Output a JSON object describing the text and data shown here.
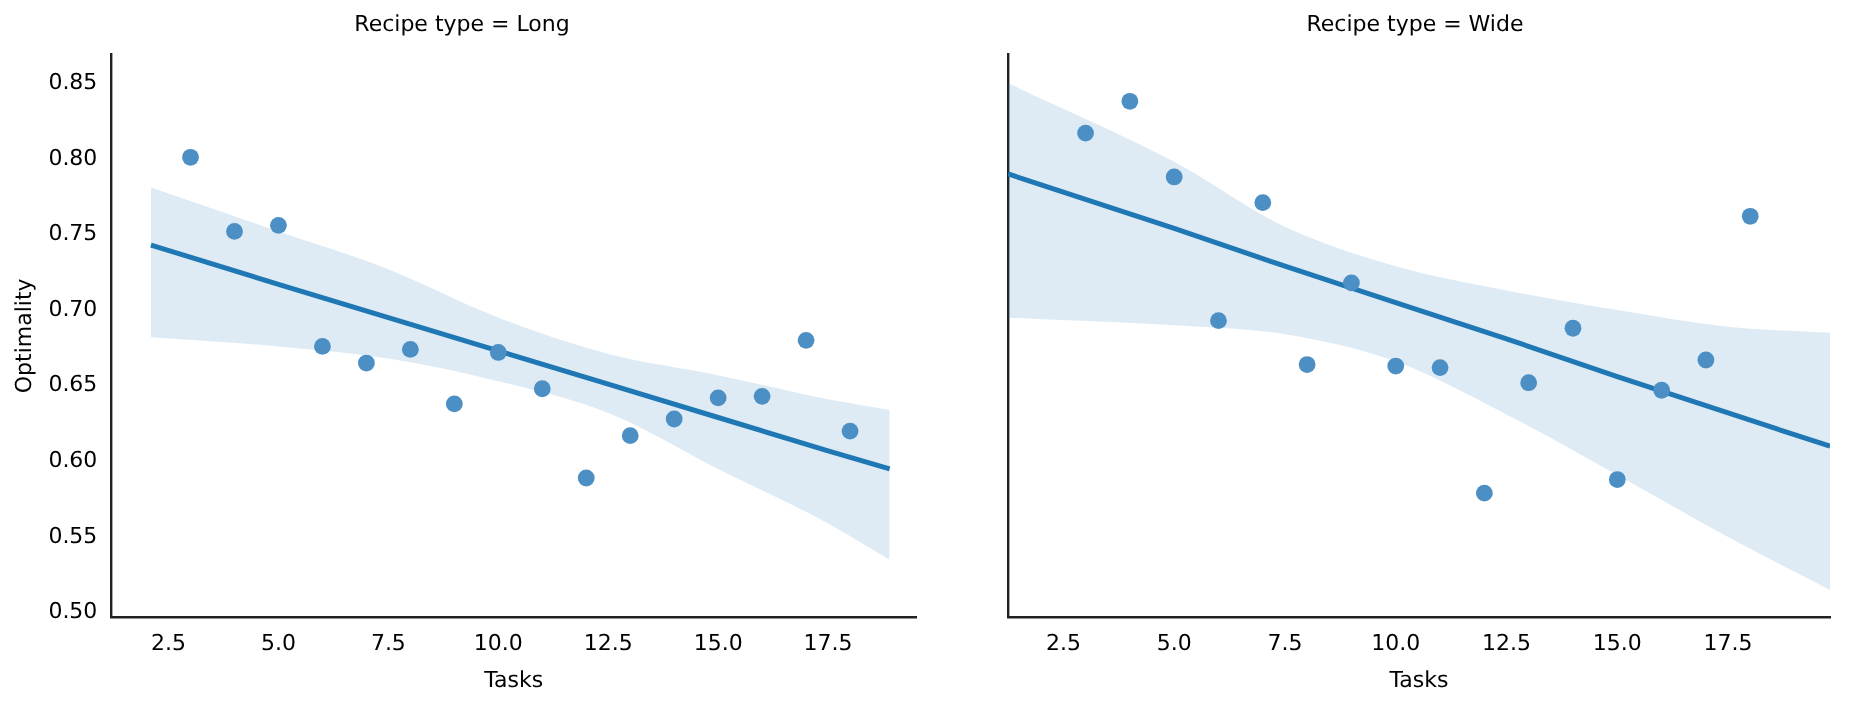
{
  "chart_data": [
    {
      "type": "scatter",
      "title": "Recipe type = Long",
      "xlabel": "Tasks",
      "ylabel": "Optimality",
      "xlim": [
        1.2,
        19.5
      ],
      "ylim": [
        0.497,
        0.869
      ],
      "xticks": [
        2.5,
        {
          "value": 5,
          "label": "5.0"
        },
        7.5,
        {
          "value": 10,
          "label": "10.0"
        },
        12.5,
        {
          "value": 15,
          "label": "15.0"
        },
        17.5
      ],
      "yticks": [
        {
          "value": 0.5,
          "label": "0.50"
        },
        0.55,
        {
          "value": 0.6,
          "label": "0.60"
        },
        0.65,
        {
          "value": 0.7,
          "label": "0.70"
        },
        0.75,
        {
          "value": 0.8,
          "label": "0.80"
        },
        0.85
      ],
      "grid": false,
      "legend": false,
      "series": [
        {
          "marker": "circle",
          "color": "#4c8fc4",
          "x": [
            3,
            4,
            5,
            6,
            7,
            8,
            9,
            10,
            11,
            12,
            13,
            14,
            15,
            16,
            17,
            18
          ],
          "values": [
            0.801,
            0.752,
            0.756,
            0.676,
            0.665,
            0.674,
            0.638,
            0.672,
            0.648,
            0.589,
            0.617,
            0.628,
            0.642,
            0.643,
            0.68,
            0.62
          ]
        },
        {
          "type": "line",
          "color": "#1f77b4",
          "x": [
            2.1,
            5,
            7.5,
            10,
            12.5,
            15,
            17.5,
            18.9
          ],
          "values": [
            0.743,
            0.717,
            0.695,
            0.673,
            0.651,
            0.629,
            0.607,
            0.595
          ],
          "lower": [
            0.682,
            0.676,
            0.668,
            0.653,
            0.632,
            0.595,
            0.559,
            0.535
          ],
          "upper": [
            0.781,
            0.752,
            0.727,
            0.695,
            0.671,
            0.657,
            0.641,
            0.634
          ]
        }
      ]
    },
    {
      "type": "scatter",
      "title": "Recipe type = Wide",
      "xlabel": "Tasks",
      "xlim": [
        1.25,
        19.8
      ],
      "ylim": [
        0.497,
        0.869
      ],
      "tick_labels": "x",
      "xticks": [
        2.5,
        {
          "value": 5,
          "label": "5.0"
        },
        7.5,
        {
          "value": 10,
          "label": "10.0"
        },
        12.5,
        {
          "value": 15,
          "label": "15.0"
        },
        17.5
      ],
      "yticks": [
        {
          "value": 0.5,
          "label": null
        },
        {
          "value": 0.55,
          "label": null
        },
        {
          "value": 0.6,
          "label": null
        },
        {
          "value": 0.65,
          "label": null
        },
        {
          "value": 0.7,
          "label": null
        },
        {
          "value": 0.75,
          "label": null
        },
        {
          "value": 0.8,
          "label": null
        },
        {
          "value": 0.85,
          "label": null
        }
      ],
      "grid": false,
      "legend": false,
      "series": [
        {
          "marker": "circle",
          "color": "#4c8fc4",
          "x": [
            3,
            4,
            5,
            6,
            7,
            8,
            9,
            10,
            11,
            12,
            13,
            14,
            15,
            16,
            17,
            18
          ],
          "values": [
            0.817,
            0.838,
            0.788,
            0.693,
            0.771,
            0.664,
            0.718,
            0.663,
            0.662,
            0.579,
            0.652,
            0.688,
            0.588,
            0.647,
            0.667,
            0.762
          ]
        },
        {
          "type": "line",
          "color": "#1f77b4",
          "x": [
            1.25,
            5,
            7.5,
            10,
            12.5,
            15,
            17.5,
            19.8
          ],
          "values": [
            0.79,
            0.754,
            0.729,
            0.705,
            0.681,
            0.656,
            0.632,
            0.61
          ],
          "lower": [
            0.695,
            0.69,
            0.684,
            0.666,
            0.631,
            0.591,
            0.55,
            0.515
          ],
          "upper": [
            0.85,
            0.798,
            0.755,
            0.729,
            0.713,
            0.7,
            0.689,
            0.685
          ]
        }
      ]
    }
  ]
}
